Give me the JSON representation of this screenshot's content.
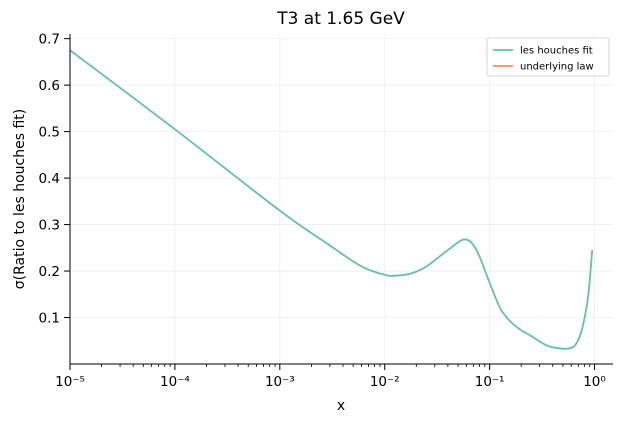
{
  "chart_data": {
    "type": "line",
    "title": "T3 at 1.65 GeV",
    "xlabel": "x",
    "ylabel": "σ(Ratio to les houches fit)",
    "xscale": "log",
    "xlim": [
      1e-05,
      1.5
    ],
    "ylim": [
      0.0,
      0.71
    ],
    "grid": true,
    "legend_position": "top-right",
    "x_tick_labels": [
      "10⁻⁵",
      "10⁻⁴",
      "10⁻³",
      "10⁻²",
      "10⁻¹",
      "10⁰"
    ],
    "y_ticks": [
      0.1,
      0.2,
      0.3,
      0.4,
      0.5,
      0.6,
      0.7
    ],
    "series": [
      {
        "name": "les houches fit",
        "color": "#66c2a5",
        "x": [
          1e-05,
          0.0001,
          0.001,
          0.003,
          0.006,
          0.01,
          0.0125,
          0.018,
          0.025,
          0.04,
          0.058,
          0.075,
          0.1,
          0.13,
          0.18,
          0.25,
          0.35,
          0.45,
          0.55,
          0.65,
          0.75,
          0.85,
          0.9,
          0.95
        ],
        "y": [
          0.675,
          0.505,
          0.33,
          0.255,
          0.21,
          0.192,
          0.19,
          0.195,
          0.21,
          0.245,
          0.268,
          0.245,
          0.175,
          0.115,
          0.08,
          0.06,
          0.04,
          0.034,
          0.033,
          0.04,
          0.07,
          0.13,
          0.18,
          0.245
        ]
      },
      {
        "name": "underlying law",
        "color": "#fc8d62",
        "x": [],
        "y": []
      }
    ]
  }
}
